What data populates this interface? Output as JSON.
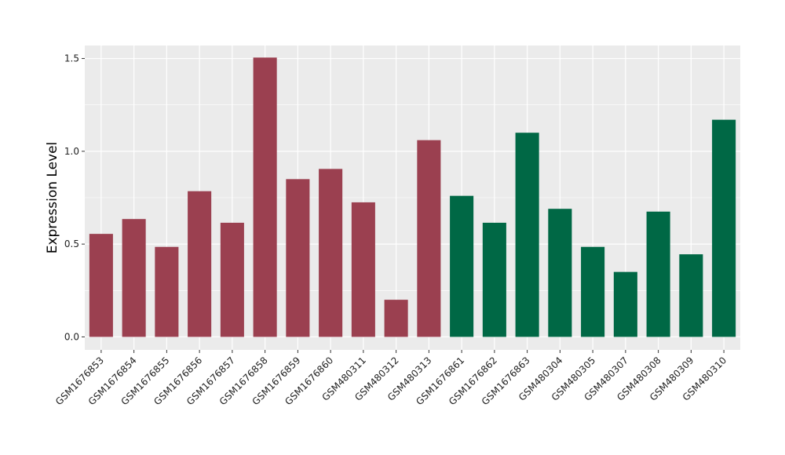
{
  "chart_data": {
    "type": "bar",
    "title": "",
    "xlabel": "",
    "ylabel": "Expression Level",
    "ylim": [
      -0.07,
      1.57
    ],
    "yticks": [
      0.0,
      0.5,
      1.0,
      1.5
    ],
    "ytick_labels": [
      "0.0",
      "0.5",
      "1.0",
      "1.5"
    ],
    "grid": true,
    "legend": "none",
    "categories": [
      "GSM1676853",
      "GSM1676854",
      "GSM1676855",
      "GSM1676856",
      "GSM1676857",
      "GSM1676858",
      "GSM1676859",
      "GSM1676860",
      "GSM480311",
      "GSM480312",
      "GSM480313",
      "GSM1676861",
      "GSM1676862",
      "GSM1676863",
      "GSM480304",
      "GSM480305",
      "GSM480307",
      "GSM480308",
      "GSM480309",
      "GSM480310"
    ],
    "values": [
      0.555,
      0.635,
      0.485,
      0.785,
      0.615,
      1.505,
      0.85,
      0.905,
      0.725,
      0.2,
      1.06,
      0.76,
      0.615,
      1.1,
      0.69,
      0.485,
      0.35,
      0.675,
      0.445,
      1.17
    ],
    "bar_colors": [
      "#9B4050",
      "#9B4050",
      "#9B4050",
      "#9B4050",
      "#9B4050",
      "#9B4050",
      "#9B4050",
      "#9B4050",
      "#9B4050",
      "#9B4050",
      "#9B4050",
      "#006845",
      "#006845",
      "#006845",
      "#006845",
      "#006845",
      "#006845",
      "#006845",
      "#006845",
      "#006845"
    ],
    "colors": {
      "panel_background": "#EBEBEB",
      "grid": "#FFFFFF"
    }
  }
}
